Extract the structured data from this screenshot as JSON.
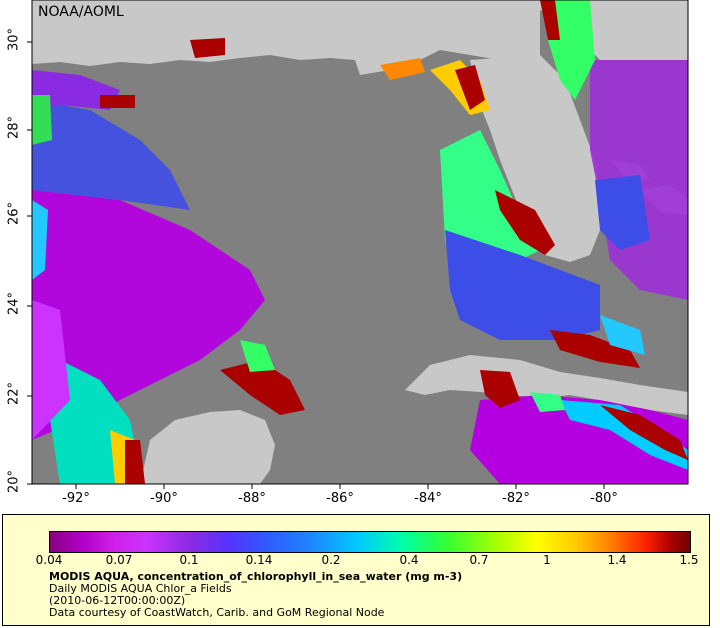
{
  "credit": "NOAA/AOML",
  "y_axis": {
    "ticks": [
      "20°",
      "22°",
      "24°",
      "26°",
      "28°",
      "30°"
    ]
  },
  "x_axis": {
    "ticks": [
      "-92°",
      "-90°",
      "-88°",
      "-86°",
      "-84°",
      "-82°",
      "-80°"
    ]
  },
  "colorbar": {
    "ticks": [
      "0.04",
      "0.07",
      "0.1",
      "0.14",
      "0.2",
      "0.4",
      "0.7",
      "1",
      "1.4",
      "1.5"
    ]
  },
  "caption": {
    "title": "MODIS AQUA, concentration_of_chlorophyll_in_sea_water (mg m-3)",
    "subtitle": "Daily MODIS AQUA Chlor_a Fields",
    "time": "(2010-06-12T00:00:00Z)",
    "credit": "Data courtesy of CoastWatch, Carib. and GoM Regional Node"
  },
  "colors": {
    "ocean_nodata": "#808080",
    "land": "#c8c8c8",
    "panel": "#ffffcc"
  }
}
